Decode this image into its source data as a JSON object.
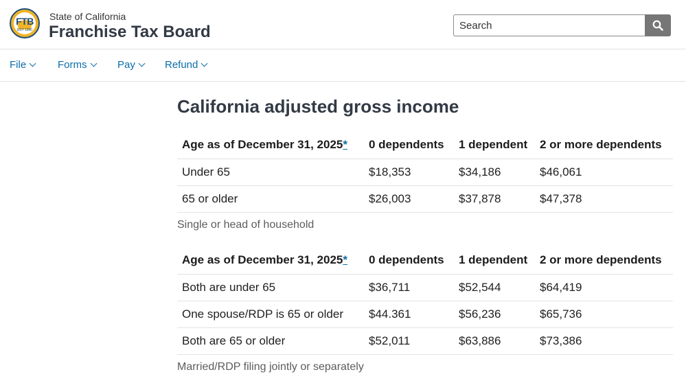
{
  "header": {
    "logo_text": "FTB",
    "logo_est": "EST 1950",
    "state_label": "State of California",
    "agency_name": "Franchise Tax Board",
    "search_placeholder": "Search",
    "search_icon": "magnifier-icon"
  },
  "nav": {
    "items": [
      {
        "label": "File"
      },
      {
        "label": "Forms"
      },
      {
        "label": "Pay"
      },
      {
        "label": "Refund"
      }
    ]
  },
  "main": {
    "title": "California adjusted gross income",
    "headers": {
      "age": "Age as of December 31, 2025",
      "footnote_marker": "*",
      "d0": "0 dependents",
      "d1": "1 dependent",
      "d2": "2 or more dependents"
    },
    "table1": {
      "rows": [
        {
          "age": "Under 65",
          "d0": "$18,353",
          "d1": "$34,186",
          "d2": "$46,061"
        },
        {
          "age": "65 or older",
          "d0": "$26,003",
          "d1": "$37,878",
          "d2": "$47,378"
        }
      ],
      "caption": "Single or head of household"
    },
    "table2": {
      "rows": [
        {
          "age": "Both are under 65",
          "d0": "$36,711",
          "d1": "$52,544",
          "d2": "$64,419"
        },
        {
          "age": "One spouse/RDP is 65 or older",
          "d0": "$44.361",
          "d1": "$56,236",
          "d2": "$65,736"
        },
        {
          "age": "Both are 65 or older",
          "d0": "$52,011",
          "d1": "$63,886",
          "d2": "$73,386"
        }
      ],
      "caption": "Married/RDP filing jointly or separately"
    }
  }
}
